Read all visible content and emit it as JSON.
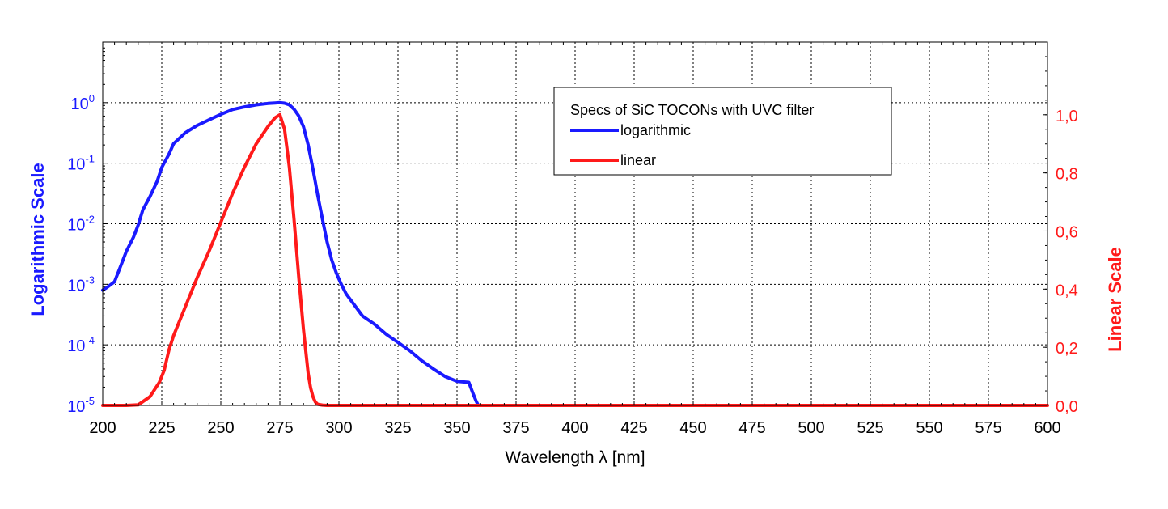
{
  "chart_data": {
    "type": "line",
    "xlabel": "Wavelength λ [nm]",
    "ylabel_left": "Logarithmic Scale",
    "ylabel_right": "Linear Scale",
    "xlim": [
      200,
      600
    ],
    "x_ticks": [
      200,
      225,
      250,
      275,
      300,
      325,
      350,
      375,
      400,
      425,
      450,
      475,
      500,
      525,
      550,
      575,
      600
    ],
    "x_tick_labels": [
      "200",
      "225",
      "250",
      "275",
      "300",
      "325",
      "350",
      "375",
      "400",
      "425",
      "450",
      "475",
      "500",
      "525",
      "550",
      "575",
      "600"
    ],
    "y_left": {
      "scale": "log",
      "lim": [
        1e-05,
        10
      ],
      "ticks": [
        {
          "value": 1e-05,
          "base": "10",
          "exp": "-5"
        },
        {
          "value": 0.0001,
          "base": "10",
          "exp": "-4"
        },
        {
          "value": 0.001,
          "base": "10",
          "exp": "-3"
        },
        {
          "value": 0.01,
          "base": "10",
          "exp": "-2"
        },
        {
          "value": 0.1,
          "base": "10",
          "exp": "-1"
        },
        {
          "value": 1,
          "base": "10",
          "exp": "0"
        }
      ],
      "color": "#1a1aff"
    },
    "y_right": {
      "scale": "linear",
      "lim": [
        0,
        1.25
      ],
      "ticks": [
        0,
        0.2,
        0.4,
        0.6,
        0.8,
        1.0
      ],
      "tick_labels": [
        "0,0",
        "0,2",
        "0,4",
        "0,6",
        "0,8",
        "1,0"
      ],
      "color": "#ff1a1a"
    },
    "grid": true,
    "legend": {
      "title": "Specs of SiC TOCONs with UVC filter",
      "placement": "top-center-right"
    },
    "series": [
      {
        "name": "logarithmic",
        "axis": "left",
        "color": "#1a1aff",
        "x": [
          200,
          202,
          205,
          208,
          210,
          213,
          215,
          217,
          220,
          223,
          225,
          228,
          230,
          235,
          240,
          245,
          250,
          255,
          260,
          265,
          270,
          273,
          275,
          277,
          279,
          281,
          283,
          285,
          287,
          289,
          291,
          293,
          295,
          297,
          299,
          301,
          303,
          305,
          310,
          315,
          320,
          325,
          330,
          335,
          340,
          345,
          350,
          355,
          357,
          358,
          359,
          360
        ],
        "y": [
          0.0008,
          0.0009,
          0.0011,
          0.0022,
          0.0035,
          0.006,
          0.0095,
          0.017,
          0.028,
          0.05,
          0.085,
          0.14,
          0.21,
          0.32,
          0.42,
          0.52,
          0.64,
          0.77,
          0.85,
          0.92,
          0.97,
          0.99,
          1.0,
          0.98,
          0.92,
          0.78,
          0.6,
          0.4,
          0.2,
          0.08,
          0.03,
          0.012,
          0.005,
          0.0025,
          0.0015,
          0.001,
          0.0007,
          0.00055,
          0.0003,
          0.00022,
          0.00015,
          0.00011,
          8e-05,
          5.5e-05,
          4e-05,
          3e-05,
          2.5e-05,
          2.4e-05,
          1.5e-05,
          1.2e-05,
          1e-05,
          1e-05
        ]
      },
      {
        "name": "linear",
        "axis": "right",
        "color": "#ff1a1a",
        "x": [
          200,
          205,
          210,
          215,
          220,
          224,
          226,
          228,
          230,
          235,
          240,
          245,
          250,
          255,
          260,
          265,
          270,
          273,
          275,
          277,
          279,
          281,
          283,
          285,
          287,
          288,
          289,
          290,
          291,
          293,
          295,
          300,
          350,
          400,
          450,
          500,
          550,
          600
        ],
        "y": [
          0.0,
          0.0,
          0.0,
          0.002,
          0.03,
          0.08,
          0.12,
          0.19,
          0.24,
          0.34,
          0.44,
          0.53,
          0.63,
          0.73,
          0.82,
          0.9,
          0.96,
          0.99,
          1.0,
          0.95,
          0.82,
          0.64,
          0.44,
          0.26,
          0.11,
          0.06,
          0.03,
          0.012,
          0.004,
          0.001,
          0.0,
          0.0,
          0.0,
          0.0,
          0.0,
          0.0,
          0.0,
          0.0
        ]
      }
    ]
  }
}
